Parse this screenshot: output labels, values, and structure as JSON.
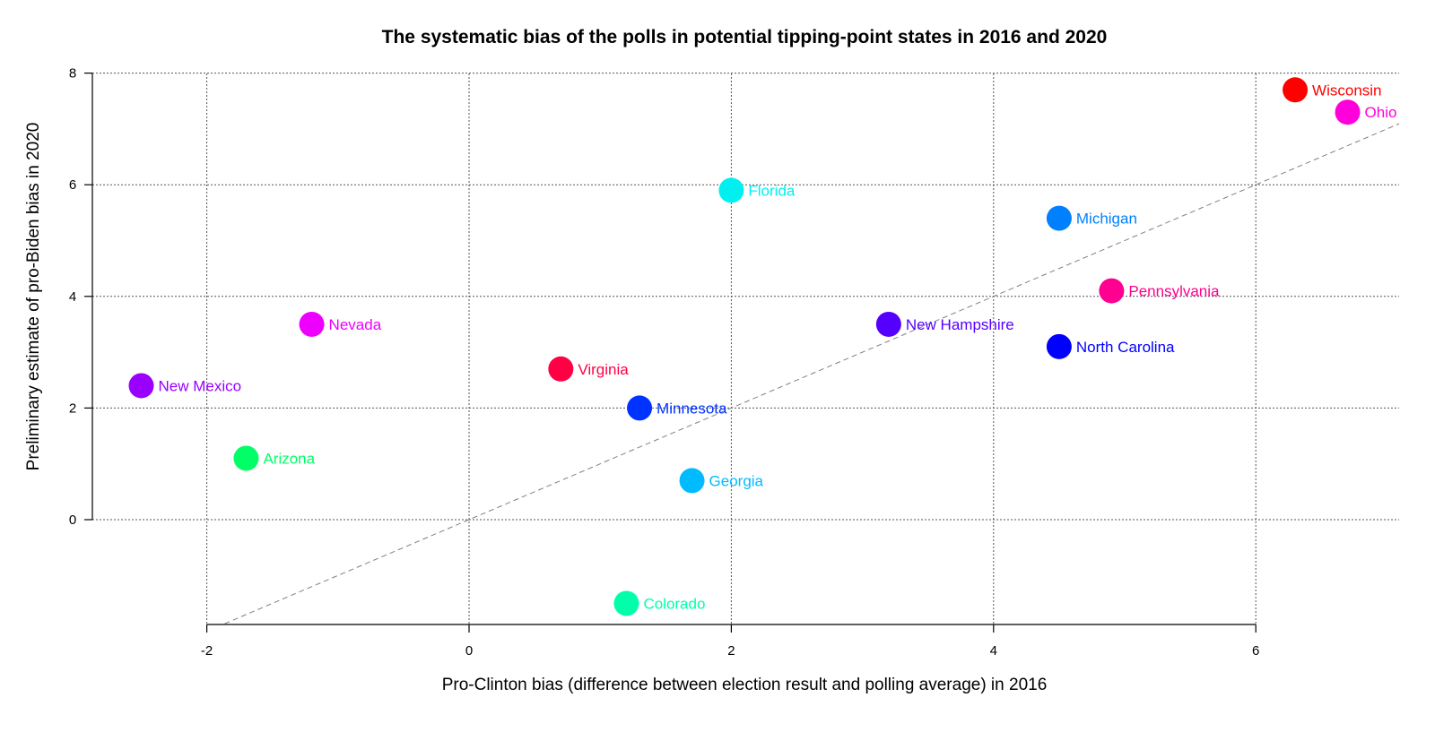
{
  "chart_data": {
    "type": "scatter",
    "title": "The systematic bias of the polls in potential tipping-point states in 2016 and 2020",
    "xlabel": "Pro-Clinton bias (difference between election result and polling average) in 2016",
    "ylabel": "Preliminary estimate of pro-Biden bias in 2020",
    "xlim": [
      -2.87,
      7.22
    ],
    "ylim": [
      -1.88,
      8.0
    ],
    "x_ticks": [
      -2,
      0,
      2,
      4,
      6
    ],
    "y_ticks": [
      0,
      2,
      4,
      6,
      8
    ],
    "grid": true,
    "reference_line": {
      "type": "y = x",
      "style": "dashed",
      "color": "#808080"
    },
    "points": [
      {
        "label": "Wisconsin",
        "x": 6.3,
        "y": 7.7,
        "color": "#ff0000"
      },
      {
        "label": "Ohio",
        "x": 6.7,
        "y": 7.3,
        "color": "#ff00dd"
      },
      {
        "label": "Florida",
        "x": 2.0,
        "y": 5.9,
        "color": "#00f0f0"
      },
      {
        "label": "Michigan",
        "x": 4.5,
        "y": 5.4,
        "color": "#0080ff"
      },
      {
        "label": "Pennsylvania",
        "x": 4.9,
        "y": 4.1,
        "color": "#ff0090"
      },
      {
        "label": "New Hampshire",
        "x": 3.2,
        "y": 3.5,
        "color": "#5500ff"
      },
      {
        "label": "North Carolina",
        "x": 4.5,
        "y": 3.1,
        "color": "#0000ff"
      },
      {
        "label": "Nevada",
        "x": -1.2,
        "y": 3.5,
        "color": "#ee00ff"
      },
      {
        "label": "Virginia",
        "x": 0.7,
        "y": 2.7,
        "color": "#ff0044"
      },
      {
        "label": "New Mexico",
        "x": -2.5,
        "y": 2.4,
        "color": "#9900ff"
      },
      {
        "label": "Minnesota",
        "x": 1.3,
        "y": 2.0,
        "color": "#0033ff"
      },
      {
        "label": "Arizona",
        "x": -1.7,
        "y": 1.1,
        "color": "#00ff66"
      },
      {
        "label": "Georgia",
        "x": 1.7,
        "y": 0.7,
        "color": "#00bbff"
      },
      {
        "label": "Colorado",
        "x": 1.2,
        "y": -1.5,
        "color": "#00ffaa"
      }
    ]
  }
}
